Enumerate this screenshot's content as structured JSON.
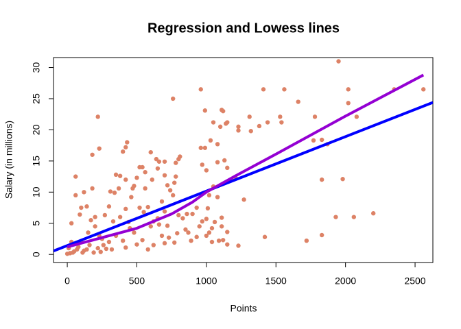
{
  "chart_data": {
    "type": "scatter",
    "title": "Regression and Lowess lines",
    "xlabel": "Points",
    "ylabel": "Salary (in millions)",
    "color": "#dd8266",
    "xlim": [
      -99,
      2628
    ],
    "ylim": [
      -1.3,
      31.6
    ],
    "xticks": [
      0,
      500,
      1000,
      1500,
      2000,
      2500
    ],
    "yticks": [
      0,
      5,
      10,
      15,
      20,
      25,
      30
    ],
    "x": [
      1950,
      2020,
      2020,
      2080,
      2350,
      2560,
      1830,
      1780,
      1830,
      1980,
      1930,
      2060,
      2200,
      1830,
      1720,
      1870,
      1770,
      1660,
      1560,
      1410,
      1530,
      1540,
      1440,
      1380,
      1420,
      1230,
      1270,
      1210,
      1230,
      1230,
      1310,
      1320,
      1150,
      1140,
      1120,
      1110,
      1100,
      1080,
      1050,
      1030,
      990,
      960,
      960,
      990,
      970,
      1000,
      1080,
      1130,
      1150,
      1180,
      1050,
      1080,
      1020,
      1110,
      1010,
      1000,
      970,
      950,
      1040,
      1060,
      1110,
      1150,
      1120,
      1150,
      1090,
      1040,
      1020,
      1000,
      930,
      890,
      870,
      850,
      830,
      800,
      790,
      770,
      760,
      810,
      800,
      780,
      780,
      770,
      760,
      740,
      720,
      700,
      700,
      680,
      660,
      650,
      640,
      600,
      610,
      560,
      560,
      540,
      520,
      500,
      480,
      470,
      460,
      430,
      420,
      400,
      420,
      380,
      370,
      350,
      340,
      310,
      220,
      230,
      180,
      180,
      120,
      90,
      60,
      60,
      30,
      230,
      200,
      250,
      150,
      100,
      80,
      50,
      20,
      10,
      30,
      120,
      160,
      220,
      260,
      300,
      320,
      350,
      400,
      420,
      450,
      480,
      500,
      540,
      580,
      600,
      620,
      650,
      680,
      700,
      730,
      100,
      140,
      170,
      200,
      270,
      300,
      330,
      380,
      420,
      440,
      520,
      550,
      580,
      620,
      660,
      700,
      720,
      860,
      900,
      930,
      0,
      40,
      70,
      110,
      140,
      190,
      240,
      280
    ],
    "values": [
      31,
      26.5,
      24.3,
      22.1,
      26.5,
      26.5,
      18.4,
      22.1,
      12,
      12.1,
      6,
      6,
      6.6,
      3.1,
      2.2,
      17.7,
      18.3,
      24.5,
      26.5,
      26.5,
      22.1,
      21.2,
      21.2,
      20.6,
      2.8,
      1.4,
      8.8,
      12.3,
      20.5,
      19.9,
      22.1,
      19.8,
      21.2,
      21,
      23,
      23.2,
      20.5,
      17.7,
      21.2,
      18.3,
      23.1,
      26.5,
      17.1,
      17.1,
      14.4,
      13.5,
      14.8,
      15.1,
      13.9,
      12,
      10.9,
      9.2,
      9.5,
      5.9,
      7.4,
      5.7,
      5.3,
      4.5,
      4.2,
      5.2,
      4.5,
      3.6,
      2.3,
      1.6,
      2.2,
      2,
      3.5,
      3,
      2.8,
      2.2,
      3.5,
      4,
      5.8,
      6.3,
      3.4,
      1.9,
      25,
      15.7,
      15.3,
      14.7,
      12.5,
      11.5,
      9.5,
      10.3,
      11.1,
      14.9,
      12.7,
      8.5,
      14.9,
      13.8,
      15.3,
      16.4,
      12,
      13.2,
      10.6,
      14,
      14,
      12.3,
      11,
      10.6,
      9.2,
      18,
      17.2,
      16.5,
      12,
      12.6,
      10.6,
      12.8,
      9.9,
      10.1,
      22.1,
      17,
      16,
      10.6,
      10,
      6.4,
      12.5,
      9.5,
      5,
      3,
      4.5,
      2.5,
      3.5,
      2,
      1.2,
      0.5,
      0.2,
      1,
      2,
      0.6,
      1.5,
      1,
      1.5,
      2,
      0.8,
      3,
      2.2,
      1.1,
      4.2,
      3.5,
      1.6,
      2.3,
      0.8,
      4.5,
      1.5,
      5.8,
      3,
      1.8,
      2.7,
      7.5,
      7.7,
      5.5,
      6,
      6.3,
      7.7,
      5.3,
      6,
      7.3,
      5.2,
      7.5,
      6.8,
      7.6,
      5.3,
      4.8,
      6.9,
      4.6,
      6.5,
      6.5,
      7.5,
      0.1,
      0.3,
      0.8,
      0.3,
      0.8,
      0.3,
      0.4,
      0.9
    ],
    "lines": [
      {
        "color": "#0000ff",
        "x": [
          -99,
          2628
        ],
        "values": [
          0.55,
          24.4
        ]
      },
      {
        "color": "#9400d3",
        "x": [
          0,
          500,
          750,
          900,
          1000,
          1200,
          1500,
          2000,
          2560
        ],
        "values": [
          1.2,
          4.2,
          6.5,
          8.4,
          10,
          12.5,
          16.1,
          22.2,
          28.8
        ]
      }
    ]
  }
}
